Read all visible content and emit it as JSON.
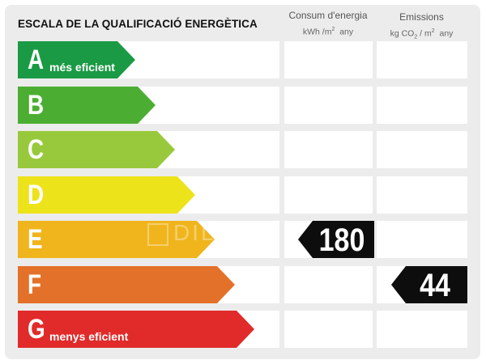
{
  "title": "ESCALA DE LA QUALIFICACIÓ ENERGÈTICA",
  "columns": {
    "consum": {
      "label": "Consum d'energia",
      "unit_prefix": "kWh /m",
      "unit_exp": "2",
      "unit_suffix": "  any"
    },
    "emissions": {
      "label": "Emissions",
      "unit_prefix": "kg CO",
      "unit_sub": "2",
      "unit_mid": " / m",
      "unit_exp": "2",
      "unit_suffix": "  any"
    }
  },
  "ratings": [
    {
      "letter": "A",
      "description": "més eficient",
      "color": "#1a9a44"
    },
    {
      "letter": "B",
      "description": "",
      "color": "#4bae32"
    },
    {
      "letter": "C",
      "description": "",
      "color": "#98c93c"
    },
    {
      "letter": "D",
      "description": "",
      "color": "#ede31b"
    },
    {
      "letter": "E",
      "description": "",
      "color": "#f0b51d"
    },
    {
      "letter": "F",
      "description": "",
      "color": "#e4712a"
    },
    {
      "letter": "G",
      "description": "menys eficient",
      "color": "#e02b2a"
    }
  ],
  "consumption": {
    "value": "180",
    "rating": "E"
  },
  "emissions": {
    "value": "44",
    "rating": "F"
  },
  "watermark": {
    "text": "DIL"
  }
}
